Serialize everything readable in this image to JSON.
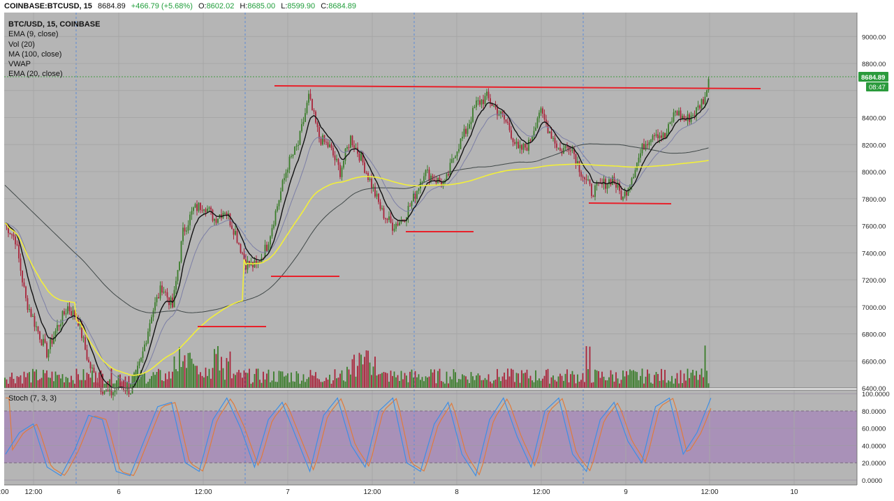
{
  "header": {
    "symbol": "COINBASE:BTCUSD, 15",
    "last": "8684.89",
    "change": "+466.79 (+5.68%)",
    "open_label": "O:",
    "open": "8602.02",
    "high_label": "H:",
    "high": "8685.00",
    "low_label": "L:",
    "low": "8599.90",
    "close_label": "C:",
    "close": "8684.89"
  },
  "legend": {
    "title": "BTC/USD, 15, COINBASE",
    "studies": [
      "EMA (9, close)",
      "Vol (20)",
      "MA (100, close)",
      "VWAP",
      "EMA (20, close)"
    ]
  },
  "price_tag": {
    "value": "8684.89",
    "countdown": "08:47"
  },
  "stoch_label": "Stoch (7, 3, 3)",
  "colors": {
    "background": "#b5b5b5",
    "up": "#3a7d2a",
    "down": "#a9243a",
    "trendline": "#e8202a",
    "ema9": "#111111",
    "ema20": "#7d7fa6",
    "ma100": "#404848",
    "vwap": "#f2ef3a",
    "stoch_k": "#3d8ee6",
    "stoch_d": "#e07b3c",
    "stoch_band": "#a98fb8",
    "tag": "#2b9b3c"
  },
  "chart_data": [
    {
      "type": "candlestick",
      "title": "BTC/USD, 15, COINBASE",
      "ylim": [
        6400,
        9200
      ],
      "y_ticks": [
        "9000.00",
        "8800.00",
        "8400.00",
        "8200.00",
        "8000.00",
        "7800.00",
        "7600.00",
        "7400.00",
        "7200.00",
        "7000.00",
        "6800.00",
        "6600.00",
        "6400.00"
      ],
      "x_ticks": [
        "12:00",
        "6",
        "12:00",
        "7",
        "12:00",
        "8",
        "12:00",
        "9",
        "12:00",
        "10",
        "12:00"
      ],
      "close_approx": [
        [
          0,
          7620
        ],
        [
          6,
          7500
        ],
        [
          12,
          7050
        ],
        [
          18,
          6850
        ],
        [
          24,
          6660
        ],
        [
          30,
          6850
        ],
        [
          36,
          7000
        ],
        [
          42,
          6900
        ],
        [
          48,
          6580
        ],
        [
          54,
          6420
        ],
        [
          60,
          6350
        ],
        [
          66,
          6420
        ],
        [
          72,
          6380
        ],
        [
          78,
          6600
        ],
        [
          84,
          6950
        ],
        [
          90,
          7150
        ],
        [
          96,
          7000
        ],
        [
          102,
          7550
        ],
        [
          108,
          7720
        ],
        [
          114,
          7760
        ],
        [
          120,
          7650
        ],
        [
          126,
          7720
        ],
        [
          132,
          7550
        ],
        [
          138,
          7320
        ],
        [
          144,
          7300
        ],
        [
          150,
          7450
        ],
        [
          156,
          7750
        ],
        [
          162,
          8050
        ],
        [
          168,
          8200
        ],
        [
          174,
          8550
        ],
        [
          180,
          8250
        ],
        [
          186,
          8180
        ],
        [
          192,
          8000
        ],
        [
          198,
          8250
        ],
        [
          204,
          8100
        ],
        [
          210,
          7900
        ],
        [
          216,
          7700
        ],
        [
          222,
          7600
        ],
        [
          228,
          7650
        ],
        [
          234,
          7800
        ],
        [
          240,
          8000
        ],
        [
          246,
          7950
        ],
        [
          252,
          7900
        ],
        [
          258,
          8150
        ],
        [
          264,
          8300
        ],
        [
          270,
          8500
        ],
        [
          276,
          8550
        ],
        [
          282,
          8450
        ],
        [
          288,
          8350
        ],
        [
          294,
          8150
        ],
        [
          300,
          8200
        ],
        [
          306,
          8450
        ],
        [
          312,
          8300
        ],
        [
          318,
          8150
        ],
        [
          324,
          8200
        ],
        [
          330,
          8000
        ],
        [
          336,
          7850
        ],
        [
          342,
          7900
        ],
        [
          348,
          7950
        ],
        [
          354,
          7800
        ],
        [
          360,
          8000
        ],
        [
          366,
          8200
        ],
        [
          372,
          8300
        ],
        [
          378,
          8250
        ],
        [
          384,
          8450
        ],
        [
          390,
          8380
        ],
        [
          396,
          8450
        ],
        [
          402,
          8580
        ]
      ]
    },
    {
      "type": "line",
      "title": "Stoch (7, 3, 3)",
      "ylim": [
        0,
        100
      ],
      "y_ticks": [
        "100.0000",
        "80.0000",
        "60.0000",
        "40.0000",
        "20.0000",
        "0.0000"
      ],
      "band": [
        20,
        80
      ],
      "k_approx": [
        [
          0,
          30
        ],
        [
          4,
          55
        ],
        [
          8,
          65
        ],
        [
          12,
          15
        ],
        [
          16,
          5
        ],
        [
          20,
          35
        ],
        [
          24,
          75
        ],
        [
          28,
          70
        ],
        [
          32,
          10
        ],
        [
          36,
          5
        ],
        [
          40,
          45
        ],
        [
          44,
          85
        ],
        [
          48,
          90
        ],
        [
          52,
          20
        ],
        [
          56,
          10
        ],
        [
          60,
          70
        ],
        [
          64,
          95
        ],
        [
          68,
          60
        ],
        [
          72,
          15
        ],
        [
          76,
          70
        ],
        [
          80,
          90
        ],
        [
          84,
          50
        ],
        [
          88,
          10
        ],
        [
          92,
          75
        ],
        [
          96,
          95
        ],
        [
          100,
          40
        ],
        [
          104,
          15
        ],
        [
          108,
          80
        ],
        [
          112,
          95
        ],
        [
          116,
          20
        ],
        [
          120,
          10
        ],
        [
          124,
          65
        ],
        [
          128,
          90
        ],
        [
          132,
          30
        ],
        [
          136,
          5
        ],
        [
          140,
          70
        ],
        [
          144,
          95
        ],
        [
          148,
          50
        ],
        [
          152,
          15
        ],
        [
          156,
          80
        ],
        [
          160,
          95
        ],
        [
          164,
          30
        ],
        [
          168,
          10
        ],
        [
          172,
          70
        ],
        [
          176,
          90
        ],
        [
          180,
          45
        ],
        [
          184,
          20
        ],
        [
          188,
          85
        ],
        [
          192,
          95
        ],
        [
          196,
          30
        ],
        [
          200,
          55
        ],
        [
          204,
          95
        ]
      ]
    }
  ]
}
